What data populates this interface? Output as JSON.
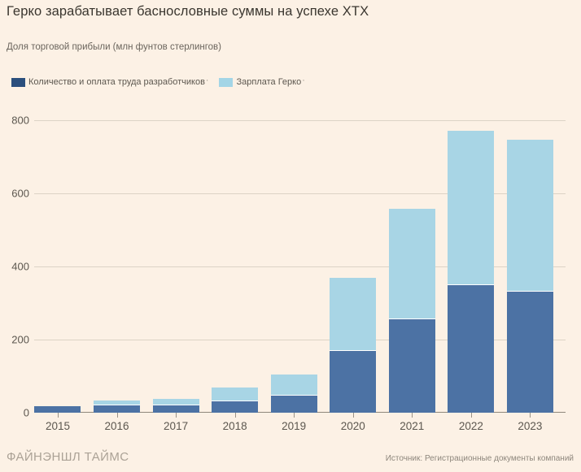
{
  "header": {
    "title": "Герко зарабатывает баснословные суммы на успехе XTX",
    "subtitle": "Доля торговой прибыли (млн фунтов стерлингов)"
  },
  "legend": {
    "items": [
      {
        "label": "Количество и оплата труда разработчиков",
        "footnote_mark": "'",
        "swatch_color": "#2B4F7D"
      },
      {
        "label": "Зарплата Герко",
        "footnote_mark": "'",
        "swatch_color": "#A3D5E6"
      }
    ]
  },
  "footer": {
    "brand": "ФАЙНЭНШЛ ТАЙМС",
    "source": "Источник: Регистрационные документы компаний"
  },
  "colors": {
    "background": "#FCF1E5",
    "bar_dark": "#4C72A4",
    "bar_light": "#A8D5E5",
    "gridline": "#DCD3C6",
    "axis_line": "#8F887C",
    "text_dark": "#3A362F",
    "text_gray": "#5C574F"
  },
  "chart_data": {
    "type": "bar",
    "stacked": true,
    "title": "Герко зарабатывает баснословные суммы на успехе XTX",
    "subtitle": "Доля торговой прибыли (млн фунтов стерлингов)",
    "categories": [
      "2015",
      "2016",
      "2017",
      "2018",
      "2019",
      "2020",
      "2021",
      "2022",
      "2023"
    ],
    "series": [
      {
        "name": "Количество и оплата труда разработчиков",
        "color": "#4C72A4",
        "values": [
          18,
          20,
          20,
          30,
          47,
          168,
          256,
          349,
          332
        ]
      },
      {
        "name": "Зарплата Герко",
        "color": "#A8D5E5",
        "values": [
          0,
          11,
          15,
          35,
          55,
          197,
          300,
          420,
          414
        ]
      }
    ],
    "totals": [
      18,
      31,
      35,
      65,
      102,
      365,
      556,
      769,
      746
    ],
    "xlabel": "",
    "ylabel": "млн фунтов стерлингов",
    "yticks": [
      0,
      200,
      400,
      600,
      800
    ],
    "ylim": [
      0,
      800
    ],
    "grid": true,
    "legend_position": "top-left"
  }
}
